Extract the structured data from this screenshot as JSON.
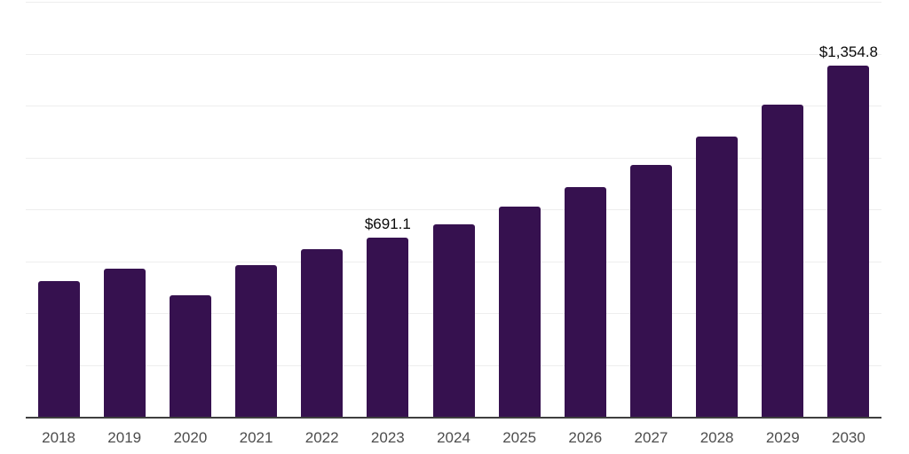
{
  "chart_data": {
    "type": "bar",
    "title": "",
    "xlabel": "",
    "ylabel": "",
    "legend": "none",
    "grid": "horizontal",
    "ylim": [
      0,
      1600
    ],
    "gridline_step": 200,
    "categories": [
      "2018",
      "2019",
      "2020",
      "2021",
      "2022",
      "2023",
      "2024",
      "2025",
      "2026",
      "2027",
      "2028",
      "2029",
      "2030"
    ],
    "points": [
      {
        "year": "2018",
        "value": 524
      },
      {
        "year": "2019",
        "value": 572
      },
      {
        "year": "2020",
        "value": 467
      },
      {
        "year": "2021",
        "value": 584
      },
      {
        "year": "2022",
        "value": 646
      },
      {
        "year": "2023",
        "value": 691.1,
        "label": "$691.1"
      },
      {
        "year": "2024",
        "value": 743
      },
      {
        "year": "2025",
        "value": 811
      },
      {
        "year": "2026",
        "value": 884
      },
      {
        "year": "2027",
        "value": 972
      },
      {
        "year": "2028",
        "value": 1079
      },
      {
        "year": "2029",
        "value": 1204
      },
      {
        "year": "2030",
        "value": 1354.8,
        "label": "$1,354.8"
      }
    ],
    "colors": {
      "bar": "#36114f",
      "gridline": "#eeeeee",
      "axis_line": "#3f3f3f",
      "tick_label": "#4d4d4d",
      "value_label": "#0a0a0a",
      "background": "#ffffff"
    }
  }
}
